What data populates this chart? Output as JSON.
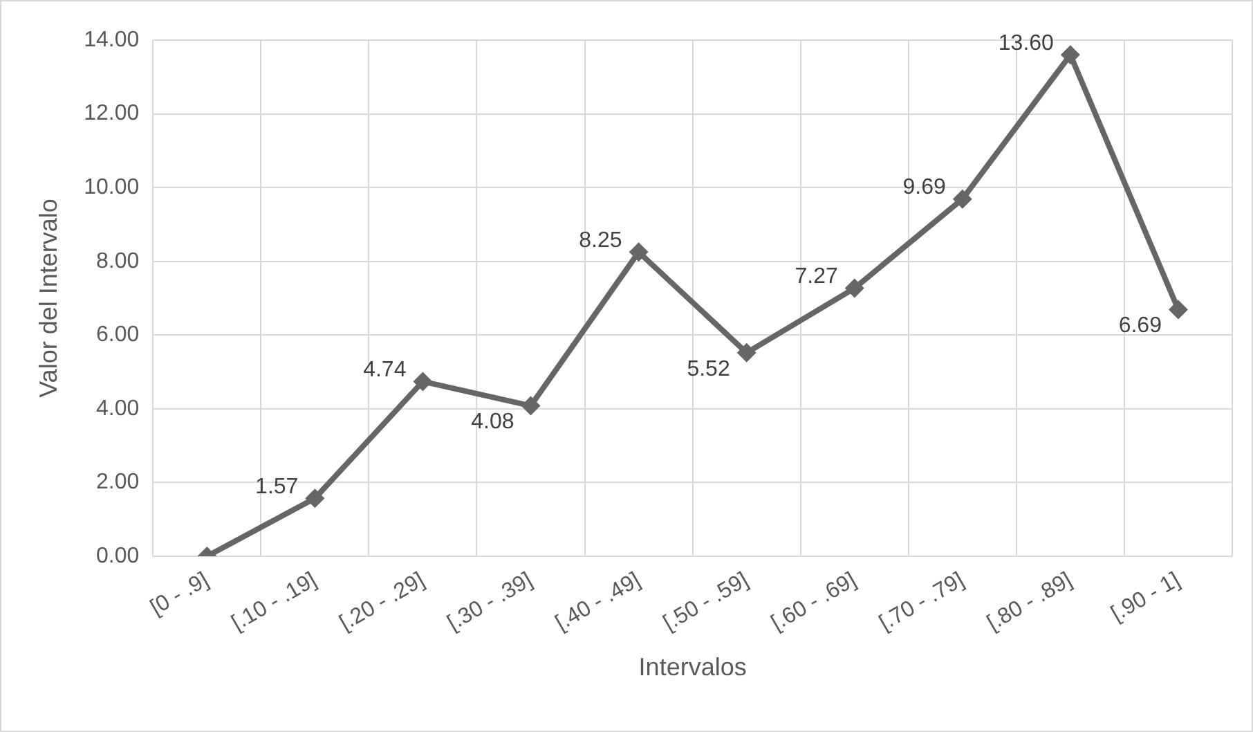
{
  "chart_data": {
    "type": "line",
    "xlabel": "Intervalos",
    "ylabel": "Valor del Intervalo",
    "categories": [
      "[0 - .9]",
      "[.10 - .19]",
      "[.20 - .29]",
      "[.30 - .39]",
      "[.40 - .49]",
      "[.50 - .59]",
      "[.60 - .69]",
      "[.70 - .79]",
      "[.80 - .89]",
      "[.90 - 1]"
    ],
    "values": [
      0,
      1.57,
      4.74,
      4.08,
      8.25,
      5.52,
      7.27,
      9.69,
      13.6,
      6.69
    ],
    "value_labels": [
      null,
      "1.57",
      "4.74",
      "4.08",
      "8.25",
      "5.52",
      "7.27",
      "9.69",
      "13.60",
      "6.69"
    ],
    "color": "#666666",
    "marker": "diamond",
    "grid": true,
    "legend": false,
    "ylim": [
      0,
      14
    ],
    "yticks": [
      {
        "value": 0,
        "label": "0.00"
      },
      {
        "value": 2,
        "label": "2.00"
      },
      {
        "value": 4,
        "label": "4.00"
      },
      {
        "value": 6,
        "label": "6.00"
      },
      {
        "value": 8,
        "label": "8.00"
      },
      {
        "value": 10,
        "label": "10.00"
      },
      {
        "value": 12,
        "label": "12.00"
      },
      {
        "value": 14,
        "label": "14.00"
      }
    ]
  }
}
